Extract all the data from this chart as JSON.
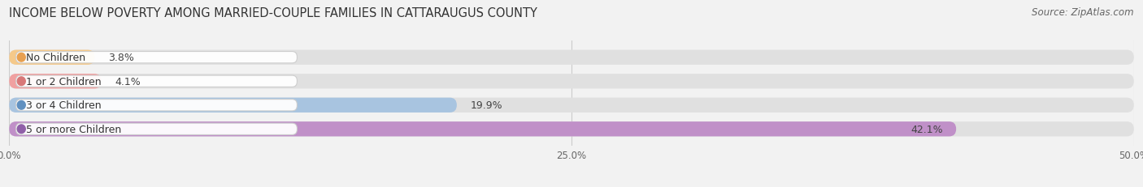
{
  "title": "INCOME BELOW POVERTY AMONG MARRIED-COUPLE FAMILIES IN CATTARAUGUS COUNTY",
  "source": "Source: ZipAtlas.com",
  "categories": [
    "No Children",
    "1 or 2 Children",
    "3 or 4 Children",
    "5 or more Children"
  ],
  "values": [
    3.8,
    4.1,
    19.9,
    42.1
  ],
  "bar_colors": [
    "#f5c98a",
    "#f0a0a0",
    "#a8c4e0",
    "#c090c8"
  ],
  "dot_colors": [
    "#e8a050",
    "#d87878",
    "#6090c0",
    "#9060a8"
  ],
  "xlim": [
    0,
    50
  ],
  "xticks": [
    0.0,
    25.0,
    50.0
  ],
  "xtick_labels": [
    "0.0%",
    "25.0%",
    "50.0%"
  ],
  "background_color": "#f2f2f2",
  "bar_bg_color": "#e0e0e0",
  "title_fontsize": 10.5,
  "source_fontsize": 8.5,
  "bar_height": 0.62,
  "value_fontsize": 9,
  "label_fontsize": 9,
  "xtick_fontsize": 8.5
}
